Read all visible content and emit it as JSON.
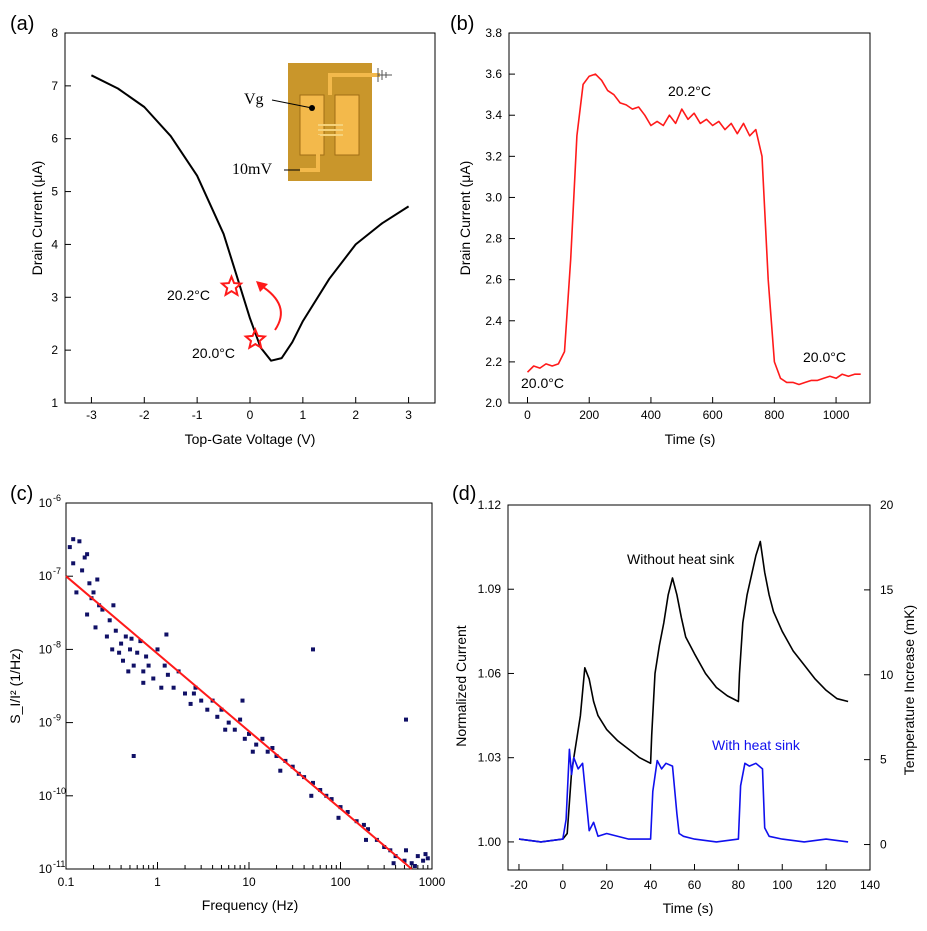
{
  "colors": {
    "black": "#000000",
    "red": "#ff1a1a",
    "blue": "#1010ee",
    "navy": "#101066",
    "chip": "#c9962b",
    "pad": "#f3b94b"
  },
  "chart_data": [
    {
      "panel": "(a)",
      "type": "line",
      "xlabel": "Top-Gate Voltage (V)",
      "ylabel": "Drain Current (μA)",
      "xlim": [
        -3.5,
        3.5
      ],
      "ylim": [
        1,
        8
      ],
      "xticks": [
        -3,
        -2,
        -1,
        0,
        1,
        2,
        3
      ],
      "yticks": [
        1,
        2,
        3,
        4,
        5,
        6,
        7,
        8
      ],
      "series": [
        {
          "name": "Drain Current",
          "color": "#000000",
          "x": [
            -3,
            -2.5,
            -2,
            -1.5,
            -1,
            -0.5,
            -0.25,
            0,
            0.2,
            0.4,
            0.6,
            0.8,
            1,
            1.5,
            2,
            2.5,
            3
          ],
          "y": [
            7.2,
            6.95,
            6.6,
            6.05,
            5.3,
            4.2,
            3.4,
            2.6,
            2.05,
            1.8,
            1.85,
            2.15,
            2.55,
            3.35,
            4.0,
            4.4,
            4.72
          ]
        }
      ],
      "markers": [
        {
          "label": "20.2°C",
          "x": -0.35,
          "y": 3.2
        },
        {
          "label": "20.0°C",
          "x": 0.1,
          "y": 2.2
        }
      ],
      "inset": {
        "labels": [
          "Vg",
          "10mV"
        ]
      }
    },
    {
      "panel": "(b)",
      "type": "line",
      "xlabel": "Time (s)",
      "ylabel": "Drain Current (μA)",
      "xlim": [
        -60,
        1110
      ],
      "ylim": [
        2.0,
        3.8
      ],
      "xticks": [
        0,
        200,
        400,
        600,
        800,
        1000
      ],
      "yticks": [
        2.0,
        2.2,
        2.4,
        2.6,
        2.8,
        3.0,
        3.2,
        3.4,
        3.6,
        3.8
      ],
      "series": [
        {
          "name": "Drain Current",
          "color": "#ff1a1a",
          "x": [
            0,
            20,
            40,
            60,
            80,
            100,
            120,
            140,
            160,
            180,
            200,
            220,
            240,
            260,
            280,
            300,
            320,
            340,
            360,
            380,
            400,
            420,
            440,
            460,
            480,
            500,
            520,
            540,
            560,
            580,
            600,
            620,
            640,
            660,
            680,
            700,
            720,
            740,
            760,
            780,
            800,
            820,
            840,
            860,
            880,
            900,
            920,
            940,
            960,
            980,
            1000,
            1020,
            1040,
            1060,
            1080
          ],
          "y": [
            2.15,
            2.18,
            2.17,
            2.19,
            2.18,
            2.19,
            2.25,
            2.7,
            3.3,
            3.55,
            3.59,
            3.6,
            3.57,
            3.52,
            3.5,
            3.46,
            3.45,
            3.43,
            3.44,
            3.4,
            3.35,
            3.37,
            3.35,
            3.4,
            3.36,
            3.43,
            3.38,
            3.41,
            3.36,
            3.38,
            3.35,
            3.37,
            3.33,
            3.36,
            3.31,
            3.36,
            3.3,
            3.33,
            3.2,
            2.6,
            2.2,
            2.12,
            2.1,
            2.1,
            2.09,
            2.1,
            2.11,
            2.11,
            2.12,
            2.13,
            2.12,
            2.14,
            2.13,
            2.14,
            2.14
          ]
        }
      ],
      "annotations": [
        "20.2°C",
        "20.0°C",
        "20.0°C"
      ]
    },
    {
      "panel": "(c)",
      "type": "scatter",
      "xscale": "log",
      "yscale": "log",
      "xlabel": "Frequency (Hz)",
      "ylabel": "S_I/I² (1/Hz)",
      "xlim": [
        0.1,
        1000
      ],
      "ylim": [
        1e-11,
        1e-06
      ],
      "xtick_labels": [
        "0.1",
        "1",
        "10",
        "100",
        "1000"
      ],
      "ytick_exponents": [
        "-11",
        "-10",
        "-9",
        "-8",
        "-7",
        "-6"
      ],
      "scatter_color": "#101066",
      "scatter_x": [
        0.11,
        0.12,
        0.13,
        0.14,
        0.15,
        0.16,
        0.17,
        0.18,
        0.19,
        0.2,
        0.21,
        0.23,
        0.25,
        0.28,
        0.3,
        0.32,
        0.35,
        0.38,
        0.4,
        0.42,
        0.45,
        0.48,
        0.5,
        0.55,
        0.6,
        0.65,
        0.7,
        0.75,
        0.8,
        0.9,
        1.0,
        1.1,
        1.2,
        1.3,
        1.5,
        1.7,
        2.0,
        2.3,
        2.6,
        3.0,
        3.5,
        4.0,
        4.5,
        5.0,
        6.0,
        7.0,
        8.0,
        9.0,
        10,
        12,
        14,
        16,
        18,
        20,
        25,
        30,
        35,
        40,
        50,
        60,
        70,
        80,
        100,
        120,
        150,
        180,
        200,
        250,
        300,
        350,
        400,
        500,
        600,
        700,
        800,
        900,
        0.12,
        0.17,
        0.22,
        0.33,
        0.52,
        0.7,
        1.25,
        2.5,
        5.5,
        11,
        22,
        48,
        95,
        190,
        380,
        520,
        650,
        850,
        0.55,
        8.5,
        50,
        520
      ],
      "scatter_y": [
        2.5e-07,
        1.5e-07,
        6e-08,
        3e-07,
        1.2e-07,
        1.8e-07,
        3e-08,
        8e-08,
        5e-08,
        6e-08,
        2e-08,
        4e-08,
        3.5e-08,
        1.5e-08,
        2.5e-08,
        1e-08,
        1.8e-08,
        9e-09,
        1.2e-08,
        7e-09,
        1.5e-08,
        5e-09,
        1e-08,
        6e-09,
        9e-09,
        1.3e-08,
        5e-09,
        8e-09,
        6e-09,
        4e-09,
        1e-08,
        3e-09,
        6e-09,
        4.5e-09,
        3e-09,
        5e-09,
        2.5e-09,
        1.8e-09,
        3e-09,
        2e-09,
        1.5e-09,
        2e-09,
        1.2e-09,
        1.5e-09,
        1e-09,
        8e-10,
        1.1e-09,
        6e-10,
        7e-10,
        5e-10,
        6e-10,
        4e-10,
        4.5e-10,
        3.5e-10,
        3e-10,
        2.5e-10,
        2e-10,
        1.8e-10,
        1.5e-10,
        1.2e-10,
        1e-10,
        9e-11,
        7e-11,
        6e-11,
        4.5e-11,
        4e-11,
        3.5e-11,
        2.5e-11,
        2e-11,
        1.8e-11,
        1.5e-11,
        1.3e-11,
        1.2e-11,
        1.5e-11,
        1.3e-11,
        1.4e-11,
        3.2e-07,
        2e-07,
        9e-08,
        4e-08,
        1.4e-08,
        3.5e-09,
        1.6e-08,
        2.5e-09,
        8e-10,
        4e-10,
        2.2e-10,
        1e-10,
        5e-11,
        2.5e-11,
        1.2e-11,
        1.8e-11,
        1.1e-11,
        1.6e-11,
        3.5e-10,
        2e-09,
        1e-08,
        1.1e-09
      ],
      "fit": {
        "color": "#ff1a1a",
        "x": [
          0.1,
          600
        ],
        "y": [
          1e-07,
          1e-11
        ]
      }
    },
    {
      "panel": "(d)",
      "type": "line",
      "xlabel": "Time (s)",
      "ylabel": "Normalized Current",
      "y2label": "Temperature Increase (mK)",
      "xlim": [
        -25,
        140
      ],
      "ylim": [
        0.99,
        1.12
      ],
      "y2lim": [
        -1.5,
        20
      ],
      "xticks": [
        -20,
        0,
        20,
        40,
        60,
        80,
        100,
        120,
        140
      ],
      "yticks": [
        "1.00",
        "1.03",
        "1.06",
        "1.09",
        "1.12"
      ],
      "y2ticks": [
        0,
        5,
        10,
        15,
        20
      ],
      "series": [
        {
          "name": "Without heat sink",
          "color": "#000000",
          "x": [
            -20,
            -10,
            0,
            2,
            4,
            6,
            8,
            10,
            12,
            14,
            16,
            20,
            25,
            30,
            35,
            40,
            40.5,
            42,
            44,
            46,
            48,
            50,
            52,
            54,
            56,
            60,
            65,
            70,
            75,
            80,
            80.5,
            82,
            84,
            86,
            88,
            90,
            92,
            94,
            96,
            100,
            105,
            110,
            115,
            120,
            125,
            130
          ],
          "y": [
            1.001,
            1.0,
            1.001,
            1.003,
            1.025,
            1.035,
            1.045,
            1.062,
            1.058,
            1.05,
            1.045,
            1.04,
            1.036,
            1.033,
            1.03,
            1.028,
            1.038,
            1.06,
            1.07,
            1.078,
            1.088,
            1.094,
            1.088,
            1.08,
            1.073,
            1.067,
            1.06,
            1.055,
            1.052,
            1.05,
            1.06,
            1.078,
            1.088,
            1.095,
            1.102,
            1.107,
            1.096,
            1.088,
            1.082,
            1.075,
            1.068,
            1.063,
            1.058,
            1.054,
            1.051,
            1.05
          ]
        },
        {
          "name": "With heat sink",
          "color": "#1010ee",
          "x": [
            -20,
            -10,
            0,
            1.5,
            3,
            4,
            5,
            7,
            9,
            11,
            12,
            14,
            16,
            20,
            30,
            40,
            41,
            43,
            45,
            47,
            50,
            52,
            53,
            55,
            60,
            70,
            80,
            81,
            83,
            85,
            88,
            91,
            92,
            94,
            100,
            110,
            120,
            130
          ],
          "y": [
            1.001,
            1.0,
            1.001,
            1.008,
            1.033,
            1.024,
            1.03,
            1.026,
            1.028,
            1.012,
            1.004,
            1.007,
            1.002,
            1.003,
            1.001,
            1.001,
            1.018,
            1.029,
            1.026,
            1.028,
            1.027,
            1.01,
            1.003,
            1.002,
            1.001,
            1.0,
            1.001,
            1.02,
            1.028,
            1.027,
            1.028,
            1.026,
            1.005,
            1.002,
            1.001,
            1.0,
            1.001,
            1.0
          ]
        }
      ],
      "annotations": [
        "Without heat sink",
        "With heat sink"
      ]
    }
  ]
}
